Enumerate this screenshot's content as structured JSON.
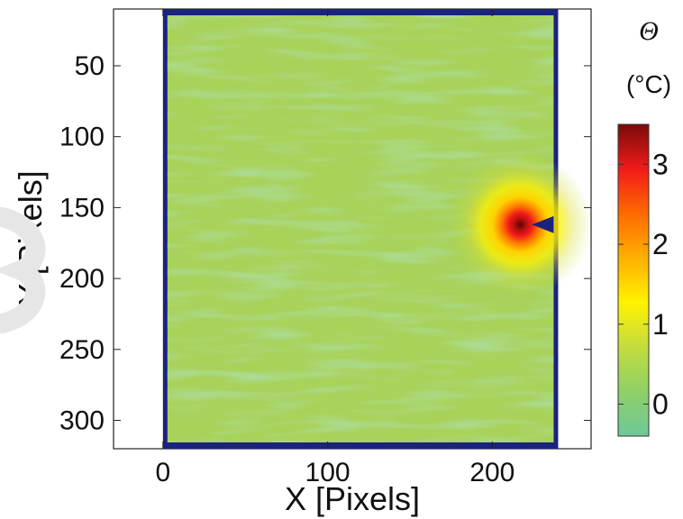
{
  "chart_data": {
    "type": "heatmap",
    "title": "",
    "xlabel": "X [Pixels]",
    "ylabel": "Y [Pixels]",
    "xlim": [
      -30,
      260
    ],
    "ylim": [
      320,
      10
    ],
    "y_axis_reversed": true,
    "x_ticks": [
      0,
      100,
      200
    ],
    "y_ticks": [
      50,
      100,
      150,
      200,
      250,
      300
    ],
    "x_tick_labels": [
      "0",
      "100",
      "200"
    ],
    "y_tick_labels": [
      "50",
      "100",
      "150",
      "200",
      "250",
      "300"
    ],
    "field_extent": {
      "x": [
        0,
        240
      ],
      "y": [
        5,
        320
      ]
    },
    "background_value": 0.0,
    "hot_spot": {
      "x": 217,
      "y": 162,
      "peak": 3.5
    },
    "notch": {
      "x_tip": 224,
      "y": 162,
      "half_height": 6
    },
    "masked_region_color": "#1a237e",
    "colorbar": {
      "title": "Θ",
      "unit": "(°C)",
      "range": [
        -0.4,
        3.5
      ],
      "ticks": [
        0,
        1,
        2,
        3
      ],
      "tick_labels": [
        "0",
        "1",
        "2",
        "3"
      ],
      "colormap": [
        "#6ec89a",
        "#8fd067",
        "#c3dc3e",
        "#fff200",
        "#ffb000",
        "#ff6a00",
        "#f21a1a",
        "#7a0b0b"
      ]
    },
    "grid": false
  }
}
